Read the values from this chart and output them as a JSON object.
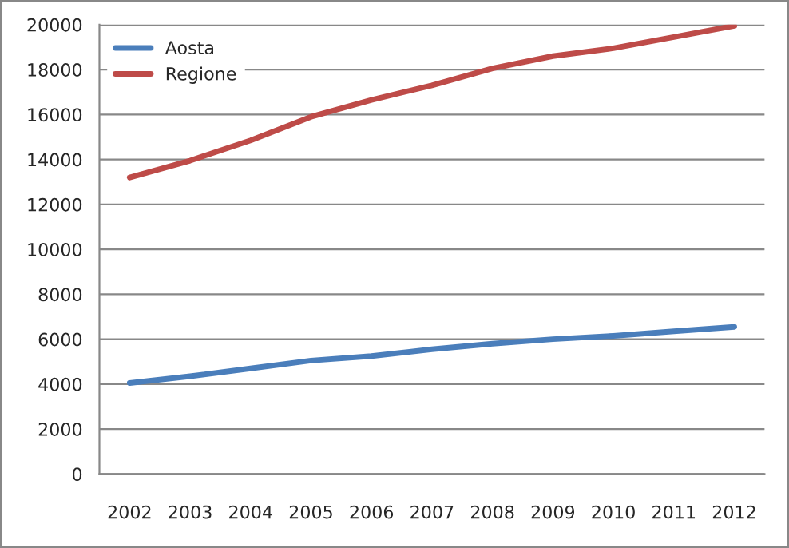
{
  "chart_data": {
    "type": "line",
    "categories": [
      "2002",
      "2003",
      "2004",
      "2005",
      "2006",
      "2007",
      "2008",
      "2009",
      "2010",
      "2011",
      "2012"
    ],
    "series": [
      {
        "name": "Aosta",
        "color": "#4a7ebb",
        "values": [
          4050,
          4350,
          4700,
          5050,
          5250,
          5550,
          5800,
          6000,
          6150,
          6350,
          6550
        ]
      },
      {
        "name": "Regione",
        "color": "#be4b48",
        "values": [
          13200,
          13950,
          14850,
          15900,
          16650,
          17300,
          18050,
          18600,
          18950,
          19450,
          19950
        ]
      }
    ],
    "ylim": [
      0,
      20000
    ],
    "yticks": [
      0,
      2000,
      4000,
      6000,
      8000,
      10000,
      12000,
      14000,
      16000,
      18000,
      20000
    ],
    "grid": "y",
    "legend": "top left",
    "marker": "none",
    "line_style": "solid"
  }
}
